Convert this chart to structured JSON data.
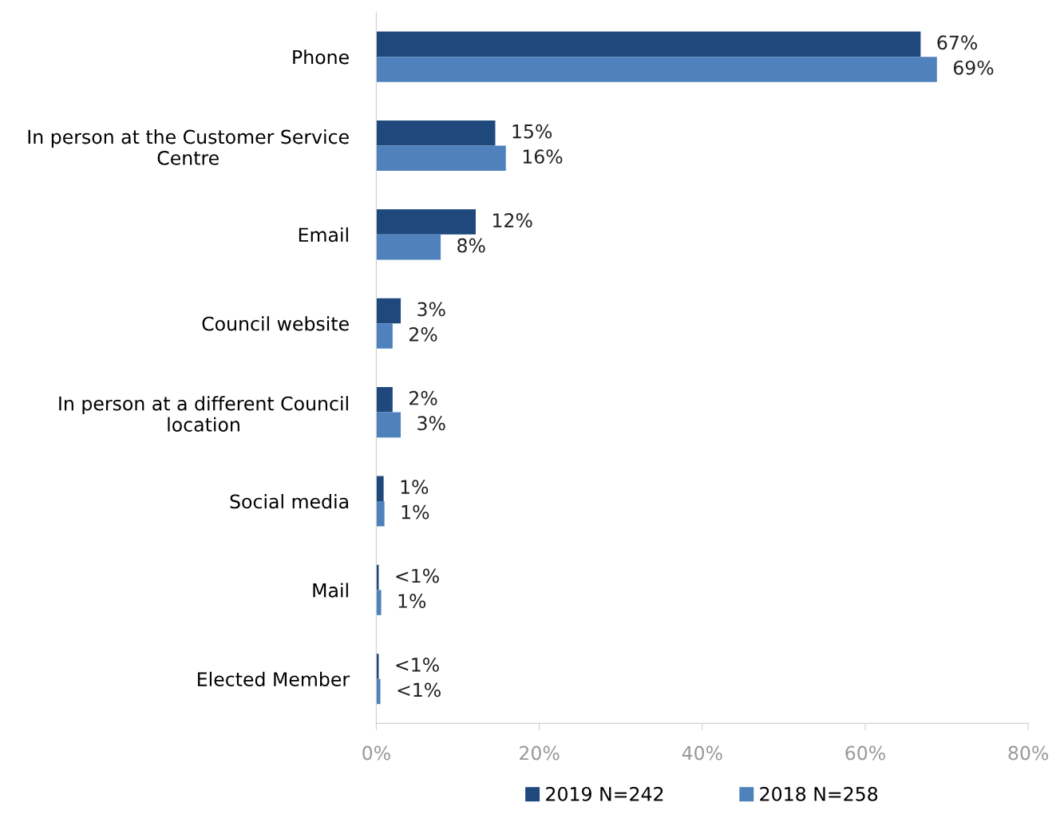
{
  "chart_data": {
    "type": "bar",
    "orientation": "horizontal",
    "categories": [
      "Phone",
      "In person at the Customer Service\nCentre",
      "Email",
      "Council website",
      "In person at a different Council\nlocation",
      "Social media",
      "Mail",
      "Elected Member"
    ],
    "series": [
      {
        "name": "2019 N=242",
        "color": "#1f497d",
        "values": [
          66.8,
          14.6,
          12.2,
          3.0,
          2.0,
          0.9,
          0.3,
          0.3
        ],
        "value_labels": [
          "67%",
          "15%",
          "12%",
          "3%",
          "2%",
          "1%",
          "<1%",
          "<1%"
        ]
      },
      {
        "name": "2018 N=258",
        "color": "#4f81bd",
        "values": [
          68.8,
          15.9,
          7.9,
          2.0,
          3.0,
          1.0,
          0.6,
          0.5
        ],
        "value_labels": [
          "69%",
          "16%",
          "8%",
          "2%",
          "3%",
          "1%",
          "1%",
          "<1%"
        ]
      }
    ],
    "xlim": [
      0,
      80
    ],
    "xticks": [
      {
        "value": 0,
        "label": "0%"
      },
      {
        "value": 20,
        "label": "20%"
      },
      {
        "value": 40,
        "label": "40%"
      },
      {
        "value": 60,
        "label": "60%"
      },
      {
        "value": 80,
        "label": "80%"
      }
    ],
    "legend": "bottom",
    "grid": false
  }
}
